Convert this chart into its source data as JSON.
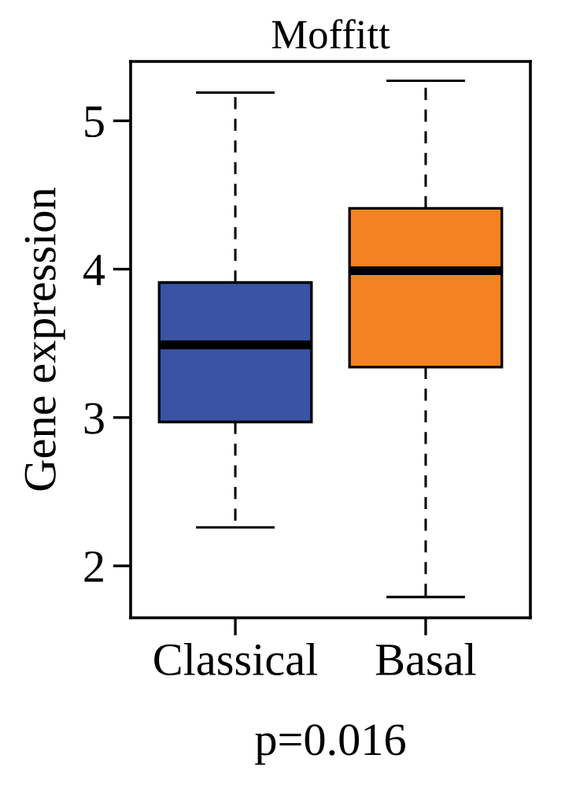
{
  "chart_data": {
    "type": "box",
    "title": "Moffitt",
    "ylabel": "Gene expression",
    "categories": [
      "Classical",
      "Basal"
    ],
    "colors": [
      "#3a53a4",
      "#f58220"
    ],
    "boxes": [
      {
        "low": 2.26,
        "q1": 2.97,
        "median": 3.49,
        "q3": 3.91,
        "high": 5.19
      },
      {
        "low": 1.79,
        "q1": 3.34,
        "median": 3.99,
        "q3": 4.41,
        "high": 5.27
      }
    ],
    "ylim": [
      1.65,
      5.4
    ],
    "yticks": [
      2,
      3,
      4,
      5
    ],
    "grid": false,
    "legend": false,
    "annotations": [
      "p=0.016"
    ]
  }
}
